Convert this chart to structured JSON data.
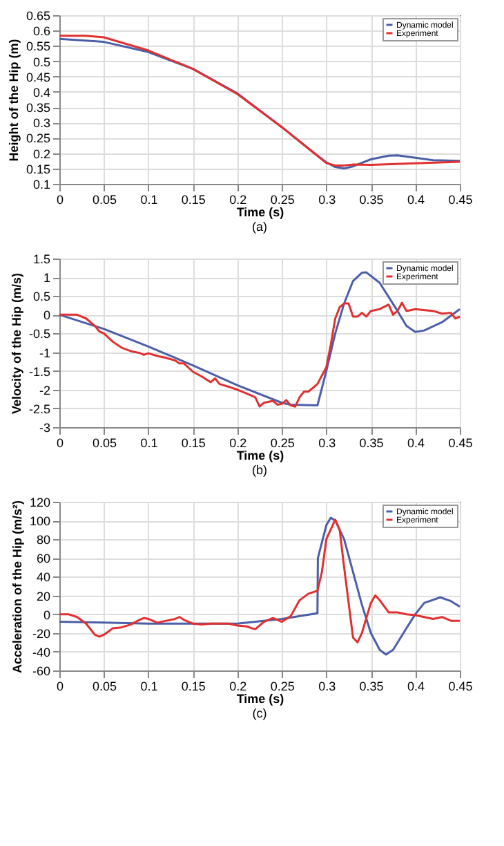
{
  "chart_data": [
    {
      "type": "line",
      "xlabel": "Time (s)",
      "ylabel": "Height of the Hip (m)",
      "annotations": [
        "(a)"
      ],
      "xlim": [
        0,
        0.45
      ],
      "xticks": [
        0,
        0.05,
        0.1,
        0.15,
        0.2,
        0.25,
        0.3,
        0.35,
        0.4,
        0.45
      ],
      "ylim": [
        0.1,
        0.65
      ],
      "yticks": [
        0.1,
        0.15,
        0.2,
        0.25,
        0.3,
        0.35,
        0.4,
        0.45,
        0.5,
        0.55,
        0.6,
        0.65
      ],
      "grid": true,
      "legend": "top right",
      "series": [
        {
          "name": "Dynamic model",
          "color": "#4a5fa8",
          "x": [
            0,
            0.05,
            0.1,
            0.15,
            0.2,
            0.25,
            0.28,
            0.3,
            0.31,
            0.32,
            0.33,
            0.35,
            0.37,
            0.38,
            0.4,
            0.42,
            0.45
          ],
          "values": [
            0.573,
            0.563,
            0.53,
            0.475,
            0.395,
            0.285,
            0.215,
            0.17,
            0.155,
            0.15,
            0.157,
            0.18,
            0.192,
            0.193,
            0.185,
            0.177,
            0.175
          ]
        },
        {
          "name": "Experiment",
          "color": "#e03030",
          "x": [
            0,
            0.03,
            0.05,
            0.1,
            0.15,
            0.2,
            0.25,
            0.28,
            0.3,
            0.31,
            0.32,
            0.33,
            0.35,
            0.4,
            0.45
          ],
          "values": [
            0.583,
            0.583,
            0.578,
            0.535,
            0.475,
            0.393,
            0.285,
            0.215,
            0.168,
            0.16,
            0.16,
            0.163,
            0.162,
            0.167,
            0.172
          ]
        }
      ]
    },
    {
      "type": "line",
      "xlabel": "Time (s)",
      "ylabel": "Velocity of the Hip (m/s)",
      "annotations": [
        "(b)"
      ],
      "xlim": [
        0,
        0.45
      ],
      "xticks": [
        0,
        0.05,
        0.1,
        0.15,
        0.2,
        0.25,
        0.3,
        0.35,
        0.4,
        0.45
      ],
      "ylim": [
        -3,
        1.5
      ],
      "yticks": [
        -3,
        -2.5,
        -2,
        -1.5,
        -1,
        -0.5,
        0,
        0.5,
        1,
        1.5
      ],
      "grid": true,
      "legend": "top right",
      "series": [
        {
          "name": "Dynamic model",
          "color": "#4a5fa8",
          "x": [
            0,
            0.05,
            0.1,
            0.15,
            0.2,
            0.25,
            0.26,
            0.29,
            0.3,
            0.31,
            0.32,
            0.33,
            0.34,
            0.345,
            0.36,
            0.38,
            0.39,
            0.4,
            0.41,
            0.43,
            0.45
          ],
          "values": [
            0,
            -0.38,
            -0.85,
            -1.35,
            -1.88,
            -2.35,
            -2.4,
            -2.42,
            -1.5,
            -0.5,
            0.3,
            0.9,
            1.12,
            1.13,
            0.85,
            0.1,
            -0.3,
            -0.46,
            -0.42,
            -0.2,
            0.15
          ]
        },
        {
          "name": "Experiment",
          "color": "#e03030",
          "x": [
            0,
            0.02,
            0.03,
            0.04,
            0.045,
            0.05,
            0.06,
            0.07,
            0.08,
            0.09,
            0.095,
            0.1,
            0.11,
            0.12,
            0.13,
            0.135,
            0.14,
            0.15,
            0.16,
            0.17,
            0.175,
            0.18,
            0.19,
            0.2,
            0.21,
            0.22,
            0.225,
            0.23,
            0.24,
            0.245,
            0.25,
            0.255,
            0.26,
            0.265,
            0.27,
            0.275,
            0.28,
            0.29,
            0.3,
            0.305,
            0.31,
            0.315,
            0.32,
            0.325,
            0.33,
            0.335,
            0.34,
            0.345,
            0.35,
            0.36,
            0.37,
            0.375,
            0.38,
            0.385,
            0.39,
            0.4,
            0.42,
            0.43,
            0.44,
            0.445,
            0.45
          ],
          "values": [
            0,
            0,
            -0.1,
            -0.3,
            -0.45,
            -0.5,
            -0.72,
            -0.88,
            -0.97,
            -1.02,
            -1.07,
            -1.03,
            -1.1,
            -1.15,
            -1.22,
            -1.3,
            -1.3,
            -1.52,
            -1.65,
            -1.8,
            -1.7,
            -1.85,
            -1.92,
            -2,
            -2.1,
            -2.2,
            -2.45,
            -2.35,
            -2.3,
            -2.4,
            -2.38,
            -2.28,
            -2.42,
            -2.45,
            -2.2,
            -2.05,
            -2.05,
            -1.85,
            -1.4,
            -0.8,
            -0.1,
            0.2,
            0.3,
            0.3,
            -0.05,
            -0.05,
            0.05,
            -0.05,
            0.1,
            0.15,
            0.27,
            0,
            0.1,
            0.32,
            0.1,
            0.15,
            0.1,
            0.03,
            0.05,
            -0.1,
            -0.05
          ]
        }
      ]
    },
    {
      "type": "line",
      "xlabel": "Time (s)",
      "ylabel": "Acceleration of the Hip (m/s²)",
      "annotations": [
        "(c)"
      ],
      "xlim": [
        0,
        0.45
      ],
      "xticks": [
        0,
        0.05,
        0.1,
        0.15,
        0.2,
        0.25,
        0.3,
        0.35,
        0.4,
        0.45
      ],
      "ylim": [
        -60,
        120
      ],
      "yticks": [
        -60,
        -40,
        -20,
        0,
        20,
        40,
        60,
        80,
        100,
        120
      ],
      "grid": true,
      "legend": "top right",
      "series": [
        {
          "name": "Dynamic model",
          "color": "#4a5fa8",
          "x": [
            0,
            0.05,
            0.1,
            0.15,
            0.2,
            0.25,
            0.29,
            0.2905,
            0.3,
            0.305,
            0.31,
            0.32,
            0.33,
            0.34,
            0.35,
            0.36,
            0.367,
            0.375,
            0.39,
            0.4,
            0.41,
            0.428,
            0.44,
            0.45
          ],
          "values": [
            -8,
            -9,
            -10,
            -10,
            -10,
            -5,
            1,
            60,
            95,
            103,
            100,
            80,
            45,
            10,
            -20,
            -38,
            -43,
            -38,
            -15,
            0,
            12,
            18,
            14,
            8
          ]
        },
        {
          "name": "Experiment",
          "color": "#e03030",
          "x": [
            0,
            0.01,
            0.02,
            0.03,
            0.04,
            0.045,
            0.05,
            0.06,
            0.07,
            0.08,
            0.09,
            0.095,
            0.1,
            0.11,
            0.12,
            0.13,
            0.135,
            0.14,
            0.15,
            0.16,
            0.17,
            0.18,
            0.19,
            0.2,
            0.21,
            0.22,
            0.23,
            0.24,
            0.25,
            0.26,
            0.27,
            0.28,
            0.29,
            0.295,
            0.3,
            0.31,
            0.315,
            0.32,
            0.33,
            0.335,
            0.34,
            0.35,
            0.355,
            0.36,
            0.37,
            0.38,
            0.39,
            0.4,
            0.41,
            0.42,
            0.43,
            0.44,
            0.45
          ],
          "values": [
            0,
            0,
            -3,
            -10,
            -22,
            -24,
            -22,
            -15,
            -14,
            -11,
            -6,
            -4,
            -5,
            -9,
            -7,
            -5,
            -3,
            -6,
            -10,
            -11,
            -10,
            -10,
            -10,
            -12,
            -13,
            -16,
            -8,
            -4,
            -8,
            -2,
            15,
            22,
            25,
            45,
            80,
            101,
            90,
            50,
            -25,
            -30,
            -20,
            12,
            20,
            15,
            2,
            2,
            0,
            -1,
            -3,
            -5,
            -3,
            -7,
            -7
          ]
        }
      ]
    }
  ]
}
